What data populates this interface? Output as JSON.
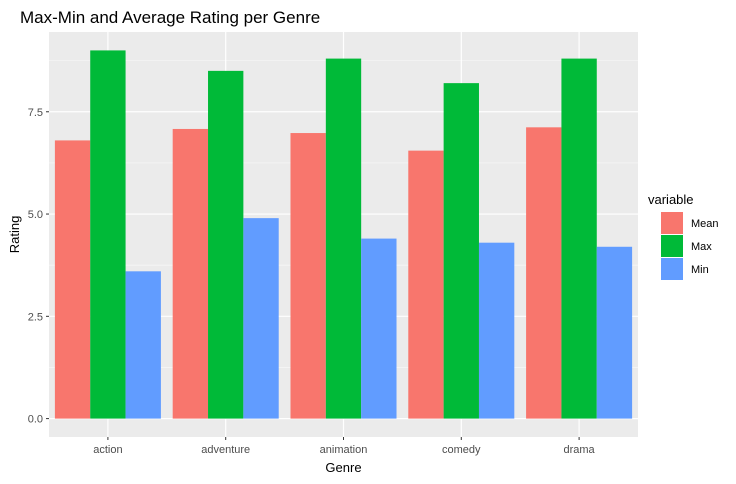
{
  "chart_data": {
    "type": "bar",
    "title": "Max-Min and Average Rating per Genre",
    "xlabel": "Genre",
    "ylabel": "Rating",
    "categories": [
      "action",
      "adventure",
      "animation",
      "comedy",
      "drama"
    ],
    "series": [
      {
        "name": "Mean",
        "color": "#F8766D",
        "values": [
          6.8,
          7.08,
          6.98,
          6.55,
          7.12
        ]
      },
      {
        "name": "Max",
        "color": "#00BA38",
        "values": [
          9.0,
          8.5,
          8.8,
          8.2,
          8.8
        ]
      },
      {
        "name": "Min",
        "color": "#619CFF",
        "values": [
          3.6,
          4.9,
          4.4,
          4.3,
          4.2
        ]
      }
    ],
    "yticks": [
      0.0,
      2.5,
      5.0,
      7.5
    ],
    "ytick_labels": [
      "0.0",
      "2.5",
      "5.0",
      "7.5"
    ],
    "ylim": [
      -0.45,
      9.45
    ],
    "grid": true,
    "legend": {
      "title": "variable",
      "position": "right"
    }
  }
}
